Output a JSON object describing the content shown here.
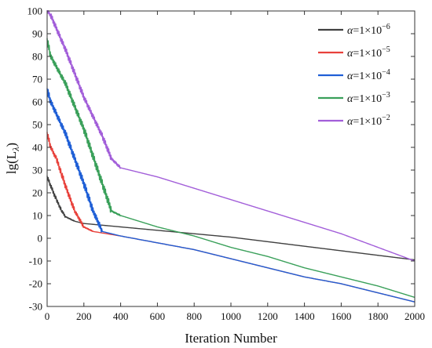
{
  "chart_data": {
    "type": "line",
    "xlabel": "Iteration Number",
    "ylabel": "lg(L",
    "ylabel_sub": "λ",
    "ylabel_close": ")",
    "xlim": [
      0,
      2000
    ],
    "ylim": [
      -30,
      100
    ],
    "x_ticks": [
      0,
      200,
      400,
      600,
      800,
      1000,
      1200,
      1400,
      1600,
      1800,
      2000
    ],
    "y_ticks": [
      -30,
      -20,
      -10,
      0,
      10,
      20,
      30,
      40,
      50,
      60,
      70,
      80,
      90,
      100
    ],
    "grid": false,
    "legend_position": "top-right",
    "series": [
      {
        "name": "α=1×10",
        "sym": "α",
        "mid": "=1×10",
        "exp": "−6",
        "color": "#404040",
        "noise": 1.2,
        "x": [
          0,
          20,
          50,
          80,
          100,
          150,
          200,
          400,
          600,
          800,
          1000,
          1200,
          1400,
          1600,
          1800,
          2000
        ],
        "y": [
          27,
          23,
          17,
          12,
          9.5,
          7.5,
          6.5,
          5,
          3.5,
          2,
          0.5,
          -1.5,
          -3.5,
          -5.5,
          -7.5,
          -9.5
        ]
      },
      {
        "name": "α=1×10",
        "sym": "α",
        "mid": "=1×10",
        "exp": "−5",
        "color": "#e8413b",
        "noise": 1.5,
        "x": [
          0,
          20,
          50,
          80,
          100,
          150,
          200,
          250,
          400,
          600,
          800,
          1000,
          1200,
          1400,
          1600,
          1800,
          2000
        ],
        "y": [
          46,
          40,
          35,
          28,
          23,
          12,
          5,
          3,
          1,
          -2,
          -5,
          -9,
          -13,
          -17,
          -20,
          -24,
          -28
        ]
      },
      {
        "name": "α=1×10",
        "sym": "α",
        "mid": "=1×10",
        "exp": "−4",
        "color": "#1f5fd6",
        "noise": 2,
        "x": [
          0,
          20,
          100,
          200,
          250,
          300,
          400,
          600,
          800,
          1000,
          1200,
          1400,
          1600,
          1800,
          2000
        ],
        "y": [
          65,
          60,
          46,
          24,
          12,
          3,
          1,
          -2,
          -5,
          -9,
          -13,
          -17,
          -20,
          -24,
          -28
        ]
      },
      {
        "name": "α=1×10",
        "sym": "α",
        "mid": "=1×10",
        "exp": "−3",
        "color": "#3aa05a",
        "noise": 2,
        "x": [
          0,
          20,
          100,
          200,
          300,
          350,
          400,
          600,
          800,
          1000,
          1200,
          1400,
          1600,
          1800,
          2000
        ],
        "y": [
          87,
          80,
          68,
          48,
          24,
          12,
          10,
          5,
          1,
          -4,
          -8,
          -13,
          -17,
          -21,
          -26
        ]
      },
      {
        "name": "α=1×10",
        "sym": "α",
        "mid": "=1×10",
        "exp": "−2",
        "color": "#a25ed9",
        "noise": 1.8,
        "x": [
          0,
          20,
          100,
          200,
          300,
          350,
          400,
          600,
          800,
          1000,
          1200,
          1400,
          1600,
          1800,
          2000
        ],
        "y": [
          100,
          98,
          83,
          62,
          45,
          35,
          31,
          27,
          22,
          17,
          12,
          7,
          2,
          -4,
          -10
        ]
      }
    ]
  }
}
